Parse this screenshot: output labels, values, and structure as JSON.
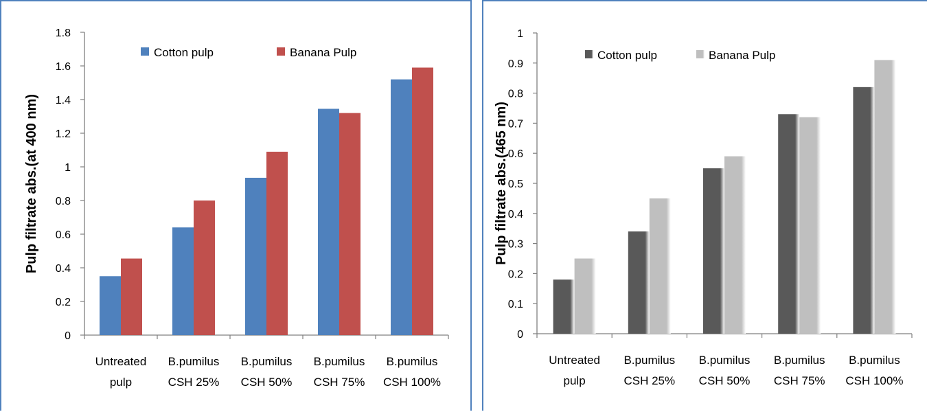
{
  "chart_data": [
    {
      "type": "bar",
      "title": "",
      "ylabel": "Pulp  filtrate  abs.(at 400 nm)",
      "xlabel": "",
      "ylim": [
        0,
        1.8
      ],
      "yticks": [
        "0",
        "0.2",
        "0.4",
        "0.6",
        "0.8",
        "1",
        "1.2",
        "1.4",
        "1.6",
        "1.8"
      ],
      "categories": [
        [
          "Untreated",
          "pulp"
        ],
        [
          "B.pumilus",
          "CSH 25%"
        ],
        [
          "B.pumilus",
          "CSH 50%"
        ],
        [
          "B.pumilus",
          "CSH 75%"
        ],
        [
          "B.pumilus",
          "CSH 100%"
        ]
      ],
      "series": [
        {
          "name": "Cotton pulp",
          "color": "#4f81bd",
          "values": [
            0.35,
            0.64,
            0.935,
            1.345,
            1.52
          ]
        },
        {
          "name": "Banana Pulp",
          "color": "#c0504d",
          "values": [
            0.455,
            0.8,
            1.09,
            1.32,
            1.59
          ]
        }
      ],
      "legend": "top",
      "grid": false
    },
    {
      "type": "bar",
      "title": "",
      "ylabel": "Pulp  filtrate  abs.(465 nm)",
      "xlabel": "",
      "ylim": [
        0,
        1
      ],
      "yticks": [
        "0",
        "0.1",
        "0.2",
        "0.3",
        "0.4",
        "0.5",
        "0.6",
        "0.7",
        "0.8",
        "0.9",
        "1"
      ],
      "categories": [
        [
          "Untreated",
          "pulp"
        ],
        [
          "B.pumilus",
          "CSH 25%"
        ],
        [
          "B.pumilus",
          "CSH 50%"
        ],
        [
          "B.pumilus",
          "CSH 75%"
        ],
        [
          "B.pumilus",
          "CSH 100%"
        ]
      ],
      "series": [
        {
          "name": "Cotton pulp",
          "color": "#595959",
          "values": [
            0.18,
            0.34,
            0.55,
            0.73,
            0.82
          ]
        },
        {
          "name": "Banana Pulp",
          "color": "#bfbfbf",
          "values": [
            0.25,
            0.45,
            0.59,
            0.72,
            0.91
          ]
        }
      ],
      "legend": "top",
      "grid": false
    }
  ]
}
